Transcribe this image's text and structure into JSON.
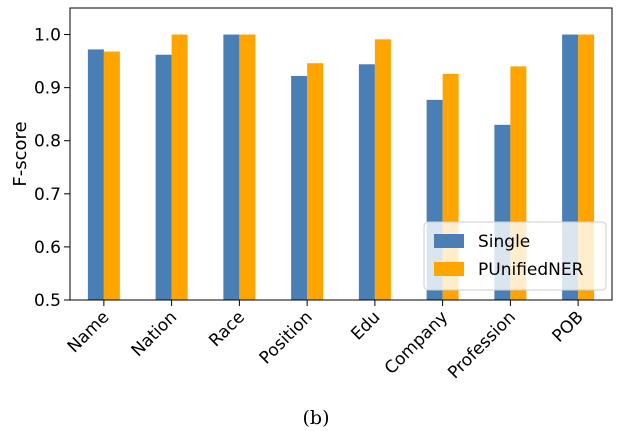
{
  "chart_data": {
    "type": "bar",
    "categories": [
      "Name",
      "Nation",
      "Race",
      "Position",
      "Edu",
      "Company",
      "Profession",
      "POB"
    ],
    "series": [
      {
        "name": "Single",
        "color": "#4a7fb5",
        "values": [
          0.972,
          0.962,
          1.0,
          0.922,
          0.944,
          0.877,
          0.83,
          1.0
        ]
      },
      {
        "name": "PUnifiedNER",
        "color": "#ffa500",
        "values": [
          0.968,
          1.0,
          1.0,
          0.946,
          0.991,
          0.926,
          0.94,
          1.0
        ]
      }
    ],
    "xlabel": "",
    "ylabel": "F-score",
    "ylim": [
      0.5,
      1.05
    ],
    "yticks": [
      0.5,
      0.6,
      0.7,
      0.8,
      0.9,
      1.0
    ],
    "ytick_labels": [
      "0.5",
      "0.6",
      "0.7",
      "0.8",
      "0.9",
      "1.0"
    ],
    "grid": false,
    "legend_position": "lower-right",
    "caption": "(b)"
  }
}
